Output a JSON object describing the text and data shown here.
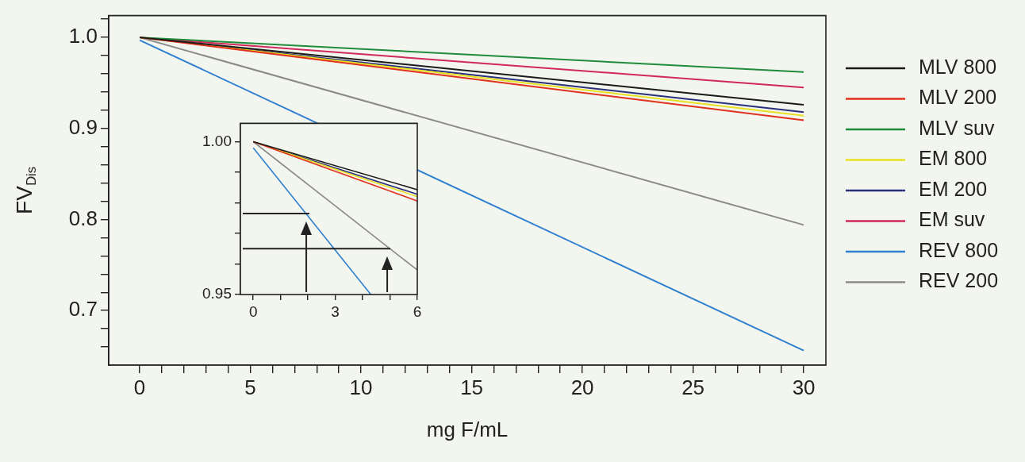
{
  "chart_data": [
    {
      "type": "line",
      "xlabel": "mg F/mL",
      "ylabel": "FV$_{Dis}$",
      "xlim": [
        -1.4,
        31
      ],
      "ylim": [
        0.64,
        1.024
      ],
      "xticks": [
        0,
        {
          "value": 1,
          "label": null
        },
        {
          "value": 2,
          "label": null
        },
        {
          "value": 3,
          "label": null
        },
        {
          "value": 4,
          "label": null
        },
        5,
        {
          "value": 6,
          "label": null
        },
        {
          "value": 7,
          "label": null
        },
        {
          "value": 8,
          "label": null
        },
        {
          "value": 9,
          "label": null
        },
        10,
        {
          "value": 11,
          "label": null
        },
        {
          "value": 12,
          "label": null
        },
        {
          "value": 13,
          "label": null
        },
        {
          "value": 14,
          "label": null
        },
        15,
        {
          "value": 16,
          "label": null
        },
        {
          "value": 17,
          "label": null
        },
        {
          "value": 18,
          "label": null
        },
        {
          "value": 19,
          "label": null
        },
        20,
        {
          "value": 21,
          "label": null
        },
        {
          "value": 22,
          "label": null
        },
        {
          "value": 23,
          "label": null
        },
        {
          "value": 24,
          "label": null
        },
        25,
        {
          "value": 26,
          "label": null
        },
        {
          "value": 27,
          "label": null
        },
        {
          "value": 28,
          "label": null
        },
        {
          "value": 29,
          "label": null
        },
        30
      ],
      "yticks": [
        {
          "value": 0.66,
          "label": null
        },
        {
          "value": 0.68,
          "label": null
        },
        0.7,
        {
          "value": 0.72,
          "label": null
        },
        {
          "value": 0.74,
          "label": null
        },
        {
          "value": 0.76,
          "label": null
        },
        {
          "value": 0.78,
          "label": null
        },
        0.8,
        {
          "value": 0.82,
          "label": null
        },
        {
          "value": 0.84,
          "label": null
        },
        {
          "value": 0.86,
          "label": null
        },
        {
          "value": 0.88,
          "label": null
        },
        0.9,
        {
          "value": 0.92,
          "label": null
        },
        {
          "value": 0.94,
          "label": null
        },
        {
          "value": 0.96,
          "label": null
        },
        {
          "value": 0.98,
          "label": null
        },
        {
          "value": 1,
          "label": "1.0"
        },
        {
          "value": 1.02,
          "label": null
        }
      ],
      "grid": false,
      "legend": "right",
      "line_style": "solid",
      "marker": "none",
      "series": [
        {
          "name": "MLV 800",
          "color": "#1a1a1a",
          "x": [
            0,
            30
          ],
          "values": [
            1.0,
            0.926
          ]
        },
        {
          "name": "MLV 200",
          "color": "#e0301e",
          "x": [
            0,
            30
          ],
          "values": [
            1.0,
            0.909
          ]
        },
        {
          "name": "MLV suv",
          "color": "#1f8c3b",
          "x": [
            0,
            30
          ],
          "values": [
            1.0,
            0.962
          ]
        },
        {
          "name": "EM 800",
          "color": "#e8e020",
          "x": [
            0,
            30
          ],
          "values": [
            1.0,
            0.914
          ]
        },
        {
          "name": "EM 200",
          "color": "#2a2f7a",
          "x": [
            0,
            30
          ],
          "values": [
            1.0,
            0.918
          ]
        },
        {
          "name": "EM suv",
          "color": "#d0285a",
          "x": [
            0,
            30
          ],
          "values": [
            1.0,
            0.945
          ]
        },
        {
          "name": "REV 800",
          "color": "#2f7fd0",
          "x": [
            0,
            30
          ],
          "values": [
            0.997,
            0.656
          ]
        },
        {
          "name": "REV 200",
          "color": "#8a8a8a",
          "x": [
            0,
            30
          ],
          "values": [
            1.0,
            0.794
          ]
        }
      ]
    },
    {
      "type": "line",
      "xlim": [
        -0.47,
        6
      ],
      "ylim": [
        0.95,
        1.006
      ],
      "xticks": [
        0,
        {
          "value": 1,
          "label": null
        },
        {
          "value": 2,
          "label": null
        },
        3,
        {
          "value": 4,
          "label": null
        },
        {
          "value": 5,
          "label": null
        },
        6
      ],
      "yticks": [
        {
          "value": 0.95,
          "label": "0.95"
        },
        {
          "value": 0.96,
          "label": null
        },
        {
          "value": 0.97,
          "label": null
        },
        {
          "value": 0.98,
          "label": null
        },
        {
          "value": 0.99,
          "label": null
        },
        {
          "value": 1,
          "label": "1.00"
        }
      ],
      "grid": false,
      "line_style": "solid",
      "marker": "none",
      "ref_lines": [
        {
          "axis": "y",
          "value": 0.9765,
          "color": "#222222"
        },
        {
          "axis": "y",
          "value": 0.965,
          "color": "#222222"
        },
        {
          "axis": "x",
          "value": 1.94,
          "color": "#222222"
        },
        {
          "axis": "x",
          "value": 4.9,
          "color": "#222222"
        }
      ],
      "series": [
        {
          "color": "#1a1a1a",
          "x": [
            0,
            6
          ],
          "values": [
            1.0,
            0.9843
          ]
        },
        {
          "color": "#e0301e",
          "x": [
            0,
            6
          ],
          "values": [
            1.0,
            0.9806
          ]
        },
        {
          "color": "#e8e020",
          "x": [
            0,
            6
          ],
          "values": [
            1.0,
            0.982
          ]
        },
        {
          "color": "#2a2f7a",
          "x": [
            0,
            6
          ],
          "values": [
            1.0,
            0.9828
          ]
        },
        {
          "color": "#2f7fd0",
          "x": [
            0,
            4.3
          ],
          "values": [
            0.998,
            0.95
          ]
        },
        {
          "color": "#8a8a8a",
          "x": [
            0,
            6
          ],
          "values": [
            1.0,
            0.958
          ]
        }
      ]
    }
  ]
}
